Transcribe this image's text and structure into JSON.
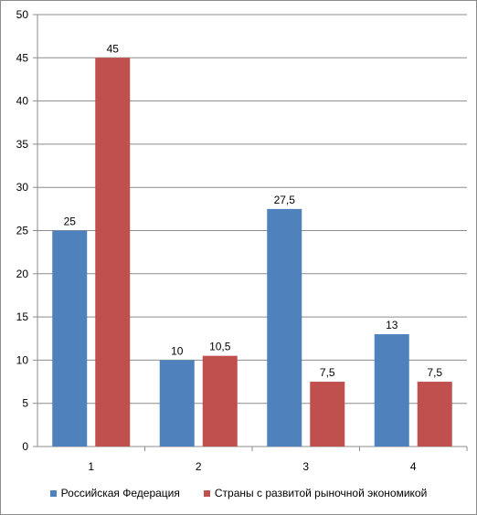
{
  "chart_data": {
    "type": "bar",
    "categories": [
      "1",
      "2",
      "3",
      "4"
    ],
    "series": [
      {
        "name": "Российская Федерация",
        "color": "#4f81bd",
        "values": [
          25,
          10,
          27.5,
          13
        ],
        "labels": [
          "25",
          "10",
          "27,5",
          "13"
        ]
      },
      {
        "name": "Страны с развитой рыночной экономикой",
        "color": "#c0504d",
        "values": [
          45,
          10.5,
          7.5,
          7.5
        ],
        "labels": [
          "45",
          "10,5",
          "7,5",
          "7,5"
        ]
      }
    ],
    "ylim": [
      0,
      50
    ],
    "yticks": [
      "0",
      "5",
      "10",
      "15",
      "20",
      "25",
      "30",
      "35",
      "40",
      "45",
      "50"
    ],
    "grid": true,
    "legend_position": "bottom",
    "title": "",
    "xlabel": "",
    "ylabel": ""
  }
}
